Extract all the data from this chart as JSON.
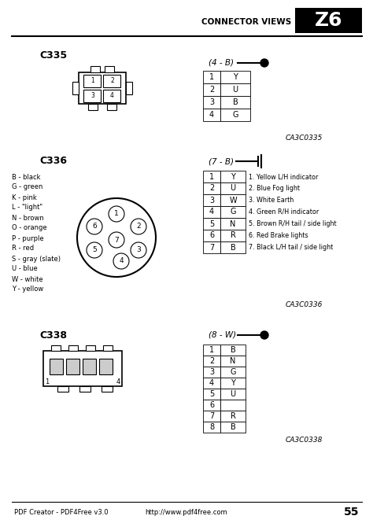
{
  "title": "CONNECTOR VIEWS",
  "tab_label": "Z6",
  "page_num": "55",
  "c335_label": "C335",
  "c335_connector_type": "(4 - B)",
  "c335_table": [
    [
      "1",
      "Y"
    ],
    [
      "2",
      "U"
    ],
    [
      "3",
      "B"
    ],
    [
      "4",
      "G"
    ]
  ],
  "c335_code": "CA3C0335",
  "c336_label": "C336",
  "c336_connector_type": "(7 - B)",
  "c336_legend": [
    "B - black",
    "G - green",
    "K - pink",
    "L - \"light\"",
    "N - brown",
    "O - orange",
    "P - purple",
    "R - red",
    "S - gray (slate)",
    "U - blue",
    "W - white",
    "Y - yellow"
  ],
  "c336_table": [
    [
      "1",
      "Y"
    ],
    [
      "2",
      "U"
    ],
    [
      "3",
      "W"
    ],
    [
      "4",
      "G"
    ],
    [
      "5",
      "N"
    ],
    [
      "6",
      "R"
    ],
    [
      "7",
      "B"
    ]
  ],
  "c336_descriptions": [
    "1. Yellow L/H indicator",
    "2. Blue Fog light",
    "3. White Earth",
    "4. Green R/H indicator",
    "5. Brown R/H tail / side light",
    "6. Red Brake lights",
    "7. Black L/H tail / side light"
  ],
  "c336_code": "CA3C0336",
  "c338_label": "C338",
  "c338_connector_type": "(8 - W)",
  "c338_table": [
    [
      "1",
      "B"
    ],
    [
      "2",
      "N"
    ],
    [
      "3",
      "G"
    ],
    [
      "4",
      "Y"
    ],
    [
      "5",
      "U"
    ],
    [
      "6",
      ""
    ],
    [
      "7",
      "R"
    ],
    [
      "8",
      "B"
    ]
  ],
  "c338_code": "CA3C0338",
  "footer_left": "PDF Creator - PDF4Free v3.0",
  "footer_right": "http://www.pdf4free.com",
  "bg_color": "#ffffff",
  "text_color": "#000000"
}
